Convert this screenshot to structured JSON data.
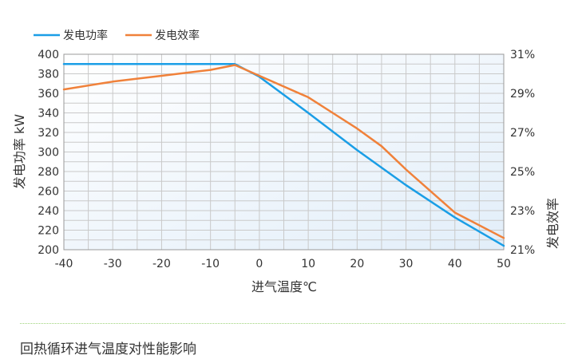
{
  "chart_data": {
    "type": "line",
    "xlabel": "进气温度℃",
    "ylabel_left": "发电功率 kW",
    "ylabel_right": "发电效率",
    "x_ticks": [
      -40,
      -30,
      -20,
      -10,
      0,
      10,
      20,
      30,
      40,
      50
    ],
    "y_left_ticks": [
      200,
      220,
      240,
      260,
      280,
      300,
      320,
      340,
      360,
      380,
      400
    ],
    "y_right_ticks": [
      "21%",
      "23%",
      "25%",
      "27%",
      "29%",
      "31%"
    ],
    "xlim": [
      -40,
      50
    ],
    "ylim_left": [
      200,
      400
    ],
    "ylim_right": [
      21,
      31
    ],
    "grid": true,
    "legend_position": "top-left",
    "series": [
      {
        "name": "发电功率",
        "axis": "left",
        "color": "#1a9ee6",
        "x": [
          -40,
          -30,
          -20,
          -10,
          -5,
          0,
          10,
          20,
          30,
          40,
          50
        ],
        "y": [
          390,
          390,
          390,
          390,
          390,
          377,
          340,
          302,
          266,
          233,
          204
        ]
      },
      {
        "name": "发电效率",
        "axis": "right",
        "color": "#f0813a",
        "x": [
          -40,
          -30,
          -20,
          -10,
          -5,
          0,
          10,
          15,
          20,
          25,
          30,
          40,
          50
        ],
        "y": [
          29.2,
          29.6,
          29.9,
          30.2,
          30.45,
          29.9,
          28.8,
          28.0,
          27.2,
          26.3,
          25.1,
          22.9,
          21.6
        ]
      }
    ]
  },
  "caption": "回热循环进气温度对性能影响"
}
